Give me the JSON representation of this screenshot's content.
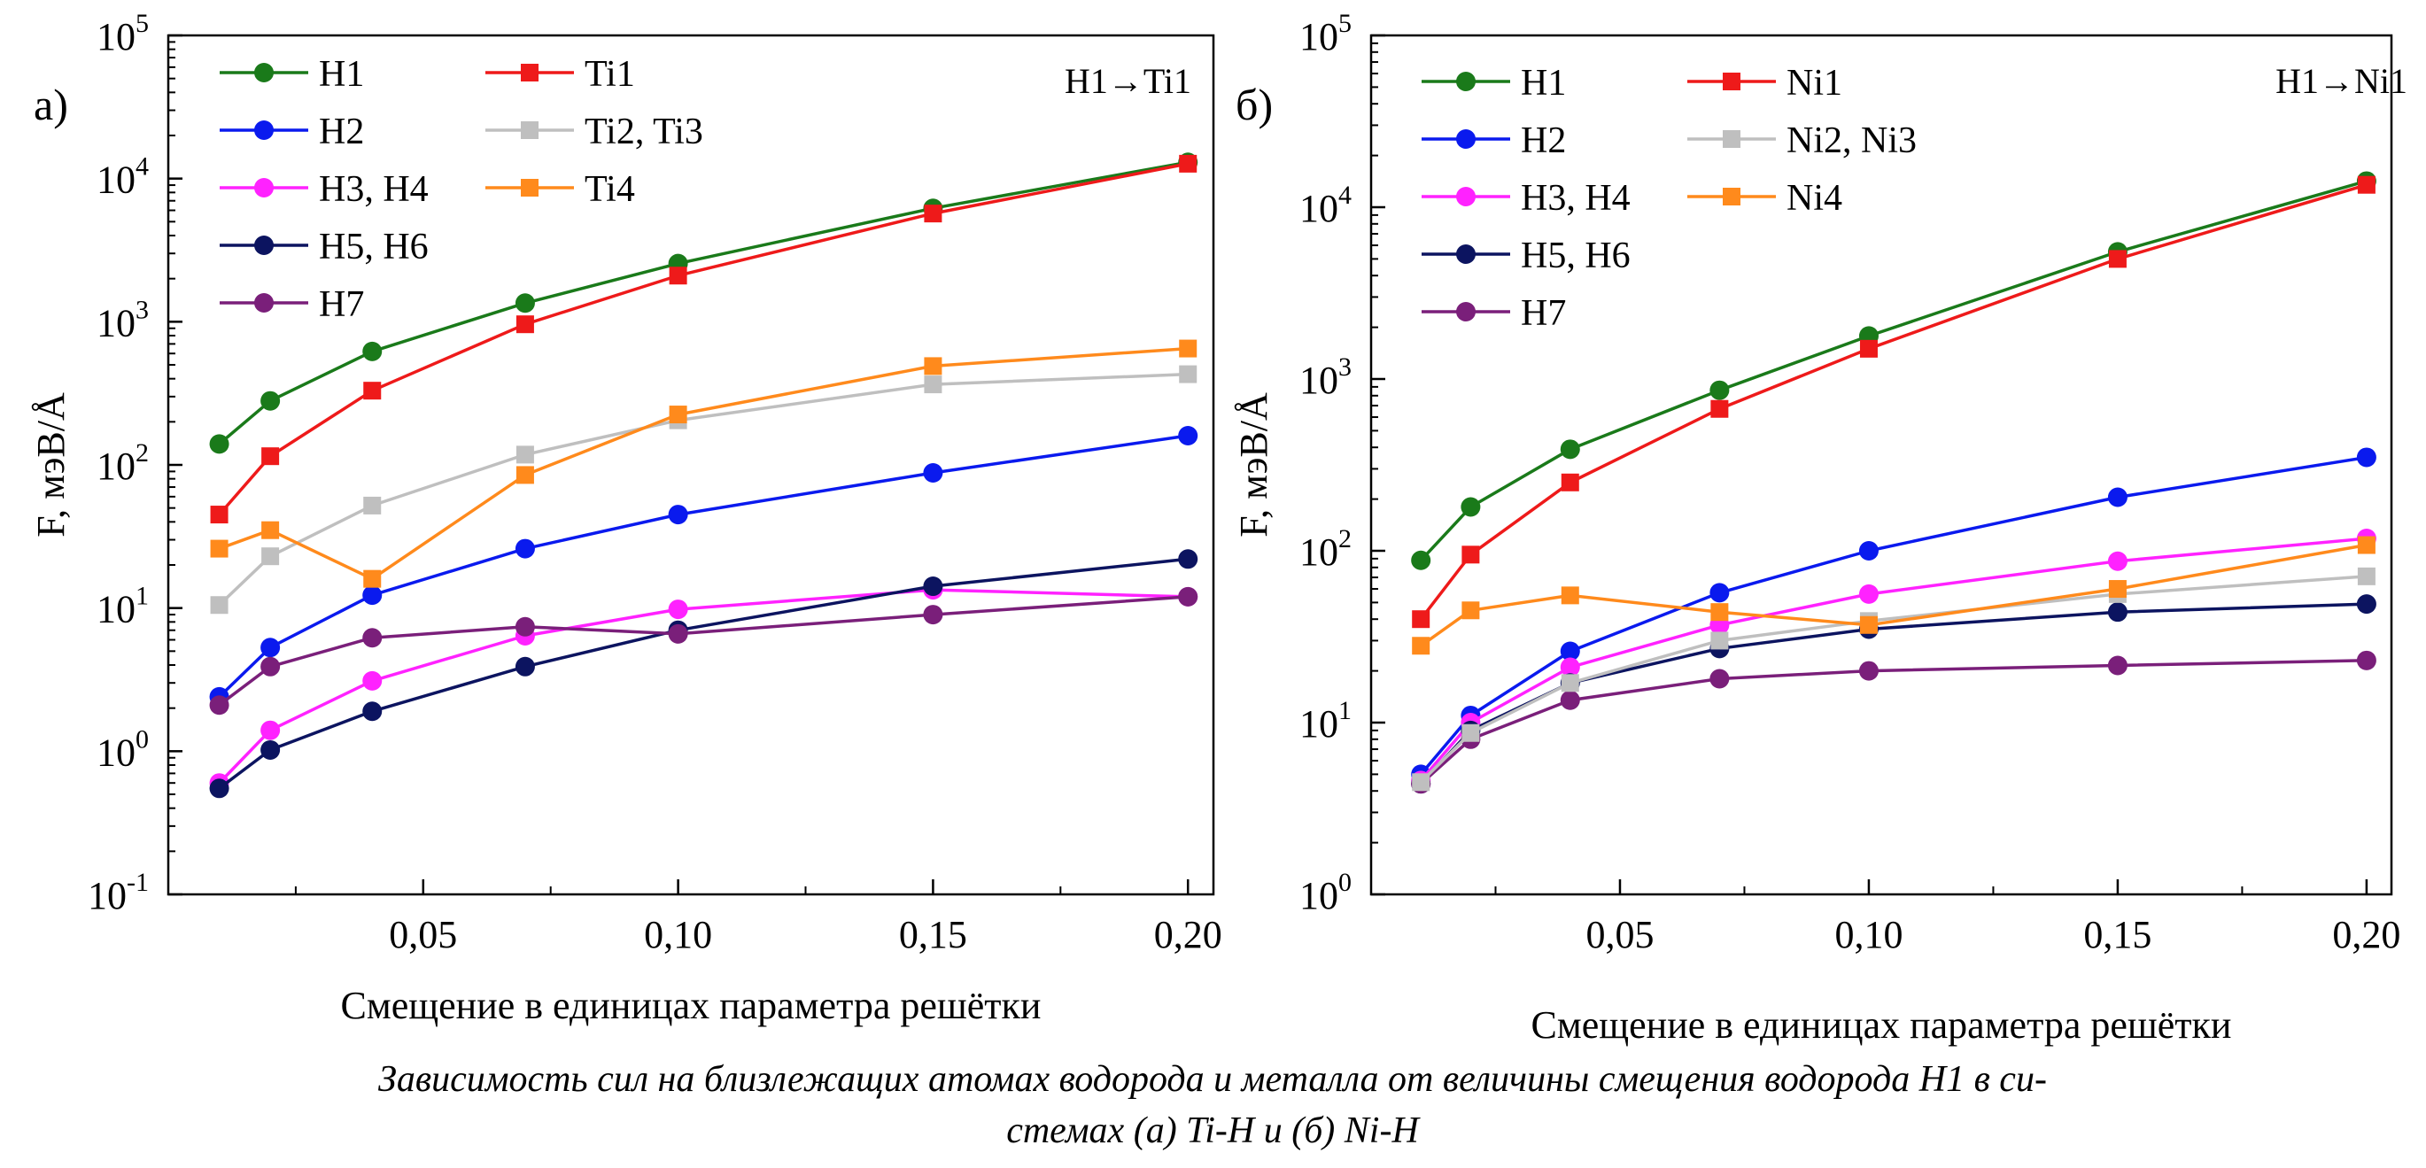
{
  "chart_data": [
    {
      "type": "line",
      "panel_label": "а)",
      "annotation": "H1→Ti1",
      "xlabel": "Смещение в единицах параметра решётки",
      "ylabel": "F, мэВ/Å",
      "yscale": "log",
      "ylim": [
        0.1,
        100000
      ],
      "xlim": [
        0.0,
        0.205
      ],
      "x_ticks": [
        0.05,
        0.1,
        0.15,
        0.2
      ],
      "x_tick_labels": [
        "0,05",
        "0,10",
        "0,15",
        "0,20"
      ],
      "y_ticks": [
        0.1,
        1,
        10,
        100,
        1000,
        10000,
        100000
      ],
      "y_tick_labels": [
        {
          "base": "10",
          "exp": "-1"
        },
        {
          "base": "10",
          "exp": "0"
        },
        {
          "base": "10",
          "exp": "1"
        },
        {
          "base": "10",
          "exp": "2"
        },
        {
          "base": "10",
          "exp": "3"
        },
        {
          "base": "10",
          "exp": "4"
        },
        {
          "base": "10",
          "exp": "5"
        }
      ],
      "legend_position": "top-left",
      "x": [
        0.01,
        0.02,
        0.04,
        0.07,
        0.1,
        0.15,
        0.2
      ],
      "series": [
        {
          "name": "H1",
          "color": "#1a7a1a",
          "marker": "circle",
          "values": [
            140,
            280,
            620,
            1350,
            2550,
            6200,
            13000
          ]
        },
        {
          "name": "H2",
          "color": "#0a1aee",
          "marker": "circle",
          "values": [
            2.4,
            5.3,
            12.3,
            26,
            45,
            88,
            160
          ]
        },
        {
          "name": "H3, H4",
          "color": "#ff22ff",
          "marker": "circle",
          "values": [
            0.6,
            1.4,
            3.1,
            6.4,
            9.8,
            13.4,
            12
          ]
        },
        {
          "name": "H5, H6",
          "color": "#0c1460",
          "marker": "circle",
          "values": [
            0.55,
            1.02,
            1.9,
            3.9,
            7,
            14.2,
            22
          ]
        },
        {
          "name": "H7",
          "color": "#7a1f7a",
          "marker": "circle",
          "values": [
            2.1,
            3.9,
            6.2,
            7.4,
            6.6,
            9,
            12
          ]
        },
        {
          "name": "Ti1",
          "color": "#ee1a1a",
          "marker": "square",
          "values": [
            45,
            115,
            330,
            960,
            2100,
            5700,
            12700
          ]
        },
        {
          "name": "Ti2, Ti3",
          "color": "#bfbfbf",
          "marker": "square",
          "values": [
            10.5,
            23,
            52,
            118,
            205,
            365,
            430
          ]
        },
        {
          "name": "Ti4",
          "color": "#ff8a1c",
          "marker": "square",
          "values": [
            26,
            35,
            16,
            85,
            225,
            490,
            650
          ]
        }
      ]
    },
    {
      "type": "line",
      "panel_label": "б)",
      "annotation": "H1→Ni1",
      "xlabel": "Смещение в единицах параметра решётки",
      "ylabel": "F, мэВ/Å",
      "yscale": "log",
      "ylim": [
        1,
        100000
      ],
      "xlim": [
        0.0,
        0.205
      ],
      "x_ticks": [
        0.05,
        0.1,
        0.15,
        0.2
      ],
      "x_tick_labels": [
        "0,05",
        "0,10",
        "0,15",
        "0,20"
      ],
      "y_ticks": [
        1,
        10,
        100,
        1000,
        10000,
        100000
      ],
      "y_tick_labels": [
        {
          "base": "10",
          "exp": "0"
        },
        {
          "base": "10",
          "exp": "1"
        },
        {
          "base": "10",
          "exp": "2"
        },
        {
          "base": "10",
          "exp": "3"
        },
        {
          "base": "10",
          "exp": "4"
        },
        {
          "base": "10",
          "exp": "5"
        }
      ],
      "legend_position": "top-left",
      "x": [
        0.01,
        0.02,
        0.04,
        0.07,
        0.1,
        0.15,
        0.2
      ],
      "series": [
        {
          "name": "H1",
          "color": "#1a7a1a",
          "marker": "circle",
          "values": [
            88,
            180,
            390,
            860,
            1780,
            5500,
            14200
          ]
        },
        {
          "name": "H2",
          "color": "#0a1aee",
          "marker": "circle",
          "values": [
            5,
            11,
            26,
            57,
            100,
            205,
            350
          ]
        },
        {
          "name": "H3, H4",
          "color": "#ff22ff",
          "marker": "circle",
          "values": [
            4.6,
            10,
            21,
            37,
            56,
            87,
            118
          ]
        },
        {
          "name": "H5, H6",
          "color": "#0c1460",
          "marker": "circle",
          "values": [
            4.4,
            9,
            17,
            27,
            35,
            44,
            49
          ]
        },
        {
          "name": "H7",
          "color": "#7a1f7a",
          "marker": "circle",
          "values": [
            4.4,
            8,
            13.5,
            18,
            20,
            21.5,
            23
          ]
        },
        {
          "name": "Ni1",
          "color": "#ee1a1a",
          "marker": "square",
          "values": [
            40,
            95,
            250,
            670,
            1500,
            5000,
            13500
          ]
        },
        {
          "name": "Ni2, Ni3",
          "color": "#bfbfbf",
          "marker": "square",
          "values": [
            4.5,
            8.7,
            17,
            30,
            39,
            56,
            71
          ]
        },
        {
          "name": "Ni4",
          "color": "#ff8a1c",
          "marker": "square",
          "values": [
            28,
            45,
            55,
            44,
            37,
            60,
            108
          ]
        }
      ]
    }
  ],
  "caption": {
    "line1": "Зависимость сил на близлежащих атомах водорода и металла от величины смещения водорода H1 в си-",
    "line2": "стемах (а) Ti-H и (б) Ni-H"
  }
}
